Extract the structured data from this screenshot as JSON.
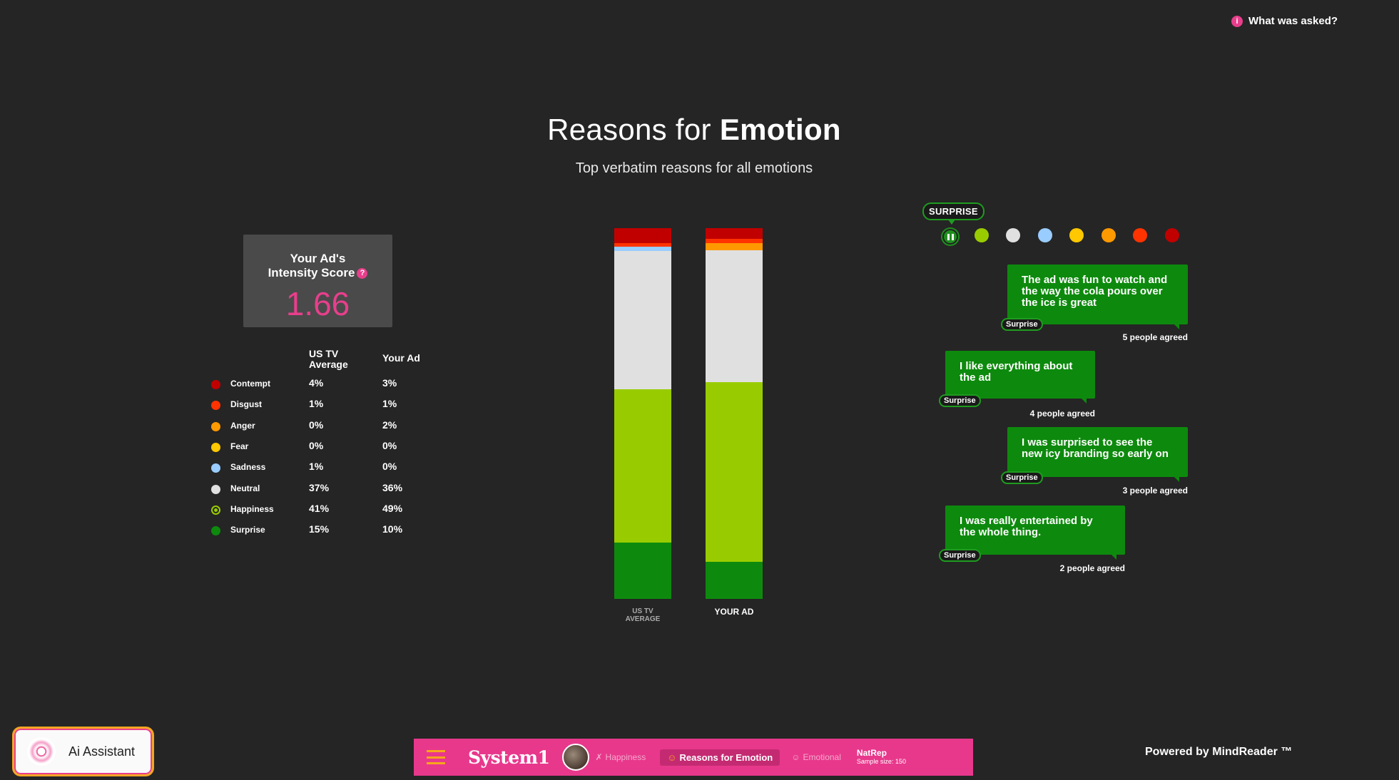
{
  "header": {
    "what_asked": "What was asked?",
    "what_asked_icon": "info-icon",
    "title_prefix": "Reasons for ",
    "title_bold": "Emotion",
    "subtitle": "Top verbatim reasons for all emotions"
  },
  "intensity": {
    "title_line1": "Your Ad's",
    "title_line2": "Intensity Score",
    "help": "?",
    "score": "1.66"
  },
  "legend": {
    "col_us_line1": "US TV",
    "col_us_line2": "Average",
    "col_ad": "Your Ad",
    "rows": [
      {
        "label": "Contempt",
        "color": "#c00000",
        "us": "4%",
        "ad": "3%"
      },
      {
        "label": "Disgust",
        "color": "#ff3300",
        "us": "1%",
        "ad": "1%"
      },
      {
        "label": "Anger",
        "color": "#ff9900",
        "us": "0%",
        "ad": "2%"
      },
      {
        "label": "Fear",
        "color": "#ffc800",
        "us": "0%",
        "ad": "0%"
      },
      {
        "label": "Sadness",
        "color": "#99ccff",
        "us": "1%",
        "ad": "0%"
      },
      {
        "label": "Neutral",
        "color": "#e0e0e0",
        "us": "37%",
        "ad": "36%"
      },
      {
        "label": "Happiness",
        "color": "#99cc00",
        "us": "41%",
        "ad": "49%"
      },
      {
        "label": "Surprise",
        "color": "#0d8a0d",
        "us": "15%",
        "ad": "10%"
      }
    ]
  },
  "bars": {
    "us_label_line1": "US TV",
    "us_label_line2": "AVERAGE",
    "ad_label": "YOUR AD"
  },
  "panel": {
    "tag": "SURPRISE",
    "selectors": [
      {
        "name": "surprise",
        "color": "#1f8f1f"
      },
      {
        "name": "happiness",
        "color": "#99cc00"
      },
      {
        "name": "neutral",
        "color": "#e0e0e0"
      },
      {
        "name": "sadness",
        "color": "#99ccff"
      },
      {
        "name": "fear",
        "color": "#ffc800"
      },
      {
        "name": "anger",
        "color": "#ff9900"
      },
      {
        "name": "disgust",
        "color": "#ff3300"
      },
      {
        "name": "contempt",
        "color": "#c00000"
      }
    ],
    "bubbles": [
      {
        "text": "The ad was fun to watch and the way the cola pours over the ice is great",
        "tag": "Surprise",
        "agreed": "5 people agreed"
      },
      {
        "text": "I like everything about the ad",
        "tag": "Surprise",
        "agreed": "4 people agreed"
      },
      {
        "text": "I was surprised to see the new icy branding so early on",
        "tag": "Surprise",
        "agreed": "3 people agreed"
      },
      {
        "text": "I was really entertained by the whole thing.",
        "tag": "Surprise",
        "agreed": "2 people agreed"
      }
    ]
  },
  "bottom": {
    "ai_label": "Ai Assistant",
    "logo": "System1",
    "tab_prev": "Happiness",
    "tab_active": "Reasons for Emotion",
    "tab_next": "Emotional",
    "natrep": "NatRep",
    "sample": "Sample size: 150",
    "powered": "Powered by MindReader ™",
    "accent": "#e8388c"
  }
}
